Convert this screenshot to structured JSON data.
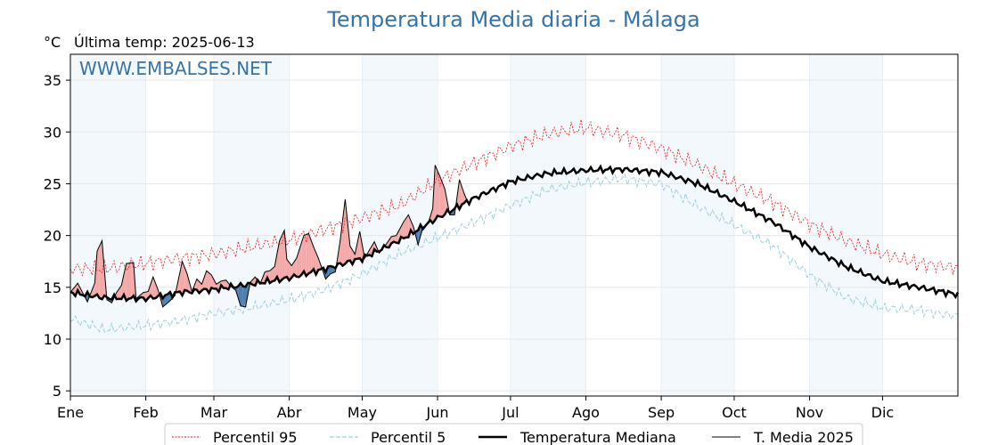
{
  "title": "Temperatura Media diaria - Málaga",
  "unit": "°C",
  "last_temp_label": "Última temp: 2025-06-13",
  "watermark": "WWW.EMBALSES.NET",
  "colors": {
    "title": "#3573a8",
    "p95": "#e31a1c",
    "p5": "#9ccfdd",
    "median": "#000000",
    "t2025": "#000000",
    "fill_above": "#f4a9a9",
    "fill_below": "#4a7fb0",
    "band": "#f3f8fc"
  },
  "chart_data": {
    "type": "line",
    "x_tick_labels": [
      "Ene",
      "Feb",
      "Mar",
      "Abr",
      "May",
      "Jun",
      "Jul",
      "Ago",
      "Sep",
      "Oct",
      "Nov",
      "Dic"
    ],
    "x_tick_days": [
      1,
      32,
      60,
      91,
      121,
      152,
      182,
      213,
      244,
      274,
      305,
      335
    ],
    "xlim": [
      1,
      366
    ],
    "ylim": [
      4.5,
      37.5
    ],
    "yticks": [
      5,
      10,
      15,
      20,
      25,
      30,
      35
    ],
    "grid": true,
    "legend_position": "bottom-center",
    "median_anchors": [
      [
        1,
        14.5
      ],
      [
        15,
        14.0
      ],
      [
        32,
        13.9
      ],
      [
        46,
        14.5
      ],
      [
        60,
        14.8
      ],
      [
        75,
        15.3
      ],
      [
        91,
        15.9
      ],
      [
        106,
        16.8
      ],
      [
        121,
        17.8
      ],
      [
        137,
        19.6
      ],
      [
        152,
        21.7
      ],
      [
        167,
        23.6
      ],
      [
        182,
        25.2
      ],
      [
        197,
        26.0
      ],
      [
        213,
        26.3
      ],
      [
        228,
        26.4
      ],
      [
        244,
        26.1
      ],
      [
        259,
        25.0
      ],
      [
        274,
        23.3
      ],
      [
        290,
        21.3
      ],
      [
        305,
        18.9
      ],
      [
        320,
        17.0
      ],
      [
        335,
        15.6
      ],
      [
        350,
        15.0
      ],
      [
        366,
        14.3
      ]
    ],
    "p95_anchors": [
      [
        1,
        16.8
      ],
      [
        15,
        16.8
      ],
      [
        32,
        17.3
      ],
      [
        46,
        17.8
      ],
      [
        60,
        18.2
      ],
      [
        75,
        18.9
      ],
      [
        91,
        19.6
      ],
      [
        106,
        20.6
      ],
      [
        121,
        21.7
      ],
      [
        137,
        23.0
      ],
      [
        152,
        25.3
      ],
      [
        167,
        27.0
      ],
      [
        182,
        28.6
      ],
      [
        197,
        29.8
      ],
      [
        213,
        30.4
      ],
      [
        228,
        29.7
      ],
      [
        244,
        28.4
      ],
      [
        259,
        26.8
      ],
      [
        274,
        25.0
      ],
      [
        290,
        23.2
      ],
      [
        305,
        21.1
      ],
      [
        320,
        19.5
      ],
      [
        335,
        18.2
      ],
      [
        350,
        17.3
      ],
      [
        366,
        16.9
      ]
    ],
    "p5_anchors": [
      [
        1,
        12.0
      ],
      [
        15,
        10.9
      ],
      [
        32,
        11.3
      ],
      [
        46,
        11.8
      ],
      [
        60,
        12.5
      ],
      [
        75,
        13.0
      ],
      [
        91,
        13.8
      ],
      [
        106,
        14.8
      ],
      [
        121,
        16.3
      ],
      [
        137,
        18.3
      ],
      [
        152,
        19.8
      ],
      [
        167,
        21.3
      ],
      [
        182,
        22.9
      ],
      [
        197,
        24.4
      ],
      [
        213,
        25.1
      ],
      [
        228,
        25.5
      ],
      [
        244,
        25.0
      ],
      [
        259,
        22.8
      ],
      [
        274,
        21.0
      ],
      [
        290,
        19.0
      ],
      [
        305,
        16.2
      ],
      [
        320,
        14.0
      ],
      [
        335,
        13.0
      ],
      [
        350,
        12.8
      ],
      [
        366,
        12.2
      ]
    ],
    "t2025_anchors": [
      [
        1,
        14.5
      ],
      [
        4,
        15.4
      ],
      [
        8,
        13.6
      ],
      [
        11,
        15.4
      ],
      [
        12,
        18.5
      ],
      [
        14,
        19.5
      ],
      [
        16,
        13.8
      ],
      [
        18,
        13.5
      ],
      [
        20,
        14.5
      ],
      [
        22,
        15.2
      ],
      [
        24,
        17.3
      ],
      [
        27,
        17.4
      ],
      [
        28,
        13.9
      ],
      [
        31,
        14.5
      ],
      [
        33,
        14.6
      ],
      [
        35,
        16.0
      ],
      [
        37,
        14.8
      ],
      [
        39,
        13.1
      ],
      [
        42,
        13.7
      ],
      [
        44,
        14.2
      ],
      [
        47,
        17.5
      ],
      [
        49,
        16.3
      ],
      [
        51,
        14.6
      ],
      [
        53,
        15.8
      ],
      [
        55,
        15.3
      ],
      [
        57,
        16.6
      ],
      [
        59,
        16.2
      ],
      [
        61,
        15.3
      ],
      [
        63,
        15.6
      ],
      [
        65,
        15.7
      ],
      [
        67,
        15.1
      ],
      [
        69,
        14.7
      ],
      [
        71,
        13.2
      ],
      [
        73,
        13.1
      ],
      [
        75,
        15.5
      ],
      [
        77,
        16.0
      ],
      [
        79,
        15.3
      ],
      [
        81,
        16.5
      ],
      [
        83,
        16.6
      ],
      [
        85,
        17.0
      ],
      [
        87,
        19.5
      ],
      [
        89,
        20.5
      ],
      [
        90,
        17.7
      ],
      [
        92,
        17.1
      ],
      [
        94,
        17.8
      ],
      [
        97,
        20.0
      ],
      [
        99,
        20.2
      ],
      [
        101,
        18.9
      ],
      [
        103,
        17.8
      ],
      [
        106,
        15.8
      ],
      [
        108,
        16.3
      ],
      [
        110,
        16.5
      ],
      [
        112,
        19.6
      ],
      [
        114,
        23.5
      ],
      [
        116,
        19.0
      ],
      [
        118,
        18.2
      ],
      [
        120,
        20.4
      ],
      [
        122,
        17.8
      ],
      [
        124,
        18.6
      ],
      [
        126,
        19.4
      ],
      [
        128,
        18.3
      ],
      [
        131,
        19.2
      ],
      [
        133,
        19.9
      ],
      [
        135,
        20.0
      ],
      [
        138,
        21.3
      ],
      [
        140,
        22.0
      ],
      [
        142,
        20.9
      ],
      [
        144,
        19.1
      ],
      [
        146,
        20.8
      ],
      [
        148,
        21.1
      ],
      [
        150,
        22.6
      ],
      [
        151,
        26.8
      ],
      [
        153,
        25.7
      ],
      [
        155,
        24.5
      ],
      [
        157,
        22.0
      ],
      [
        159,
        22.0
      ],
      [
        161,
        25.4
      ],
      [
        163,
        24.0
      ],
      [
        165,
        22.9
      ]
    ]
  },
  "legend": {
    "p95": "Percentil 95",
    "p5": "Percentil 5",
    "median": "Temperatura Mediana",
    "t2025": "T. Media 2025"
  }
}
